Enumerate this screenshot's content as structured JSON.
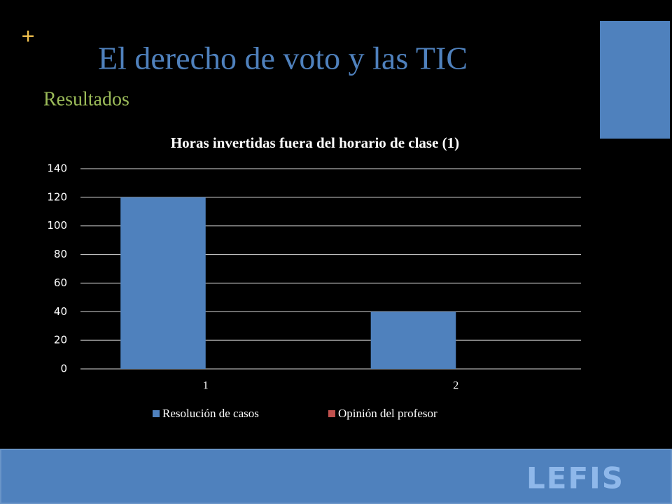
{
  "slide": {
    "marker": "+",
    "title": "El derecho de voto y las TIC",
    "subtitle": "Resultados",
    "logo": "LEFIS"
  },
  "chart_data": {
    "type": "bar",
    "title": "Horas invertidas fuera del horario de clase (1)",
    "categories": [
      "1",
      "2"
    ],
    "series": [
      {
        "name": "Resolución de casos",
        "color": "#4f81bd",
        "values": [
          120,
          40
        ]
      },
      {
        "name": "Opinión del profesor",
        "color": "#c0504d",
        "values": [
          0,
          0
        ]
      }
    ],
    "ylim": [
      0,
      140
    ],
    "yticks": [
      0,
      20,
      40,
      60,
      80,
      100,
      120,
      140
    ],
    "grid": true,
    "legend": "bottom"
  }
}
